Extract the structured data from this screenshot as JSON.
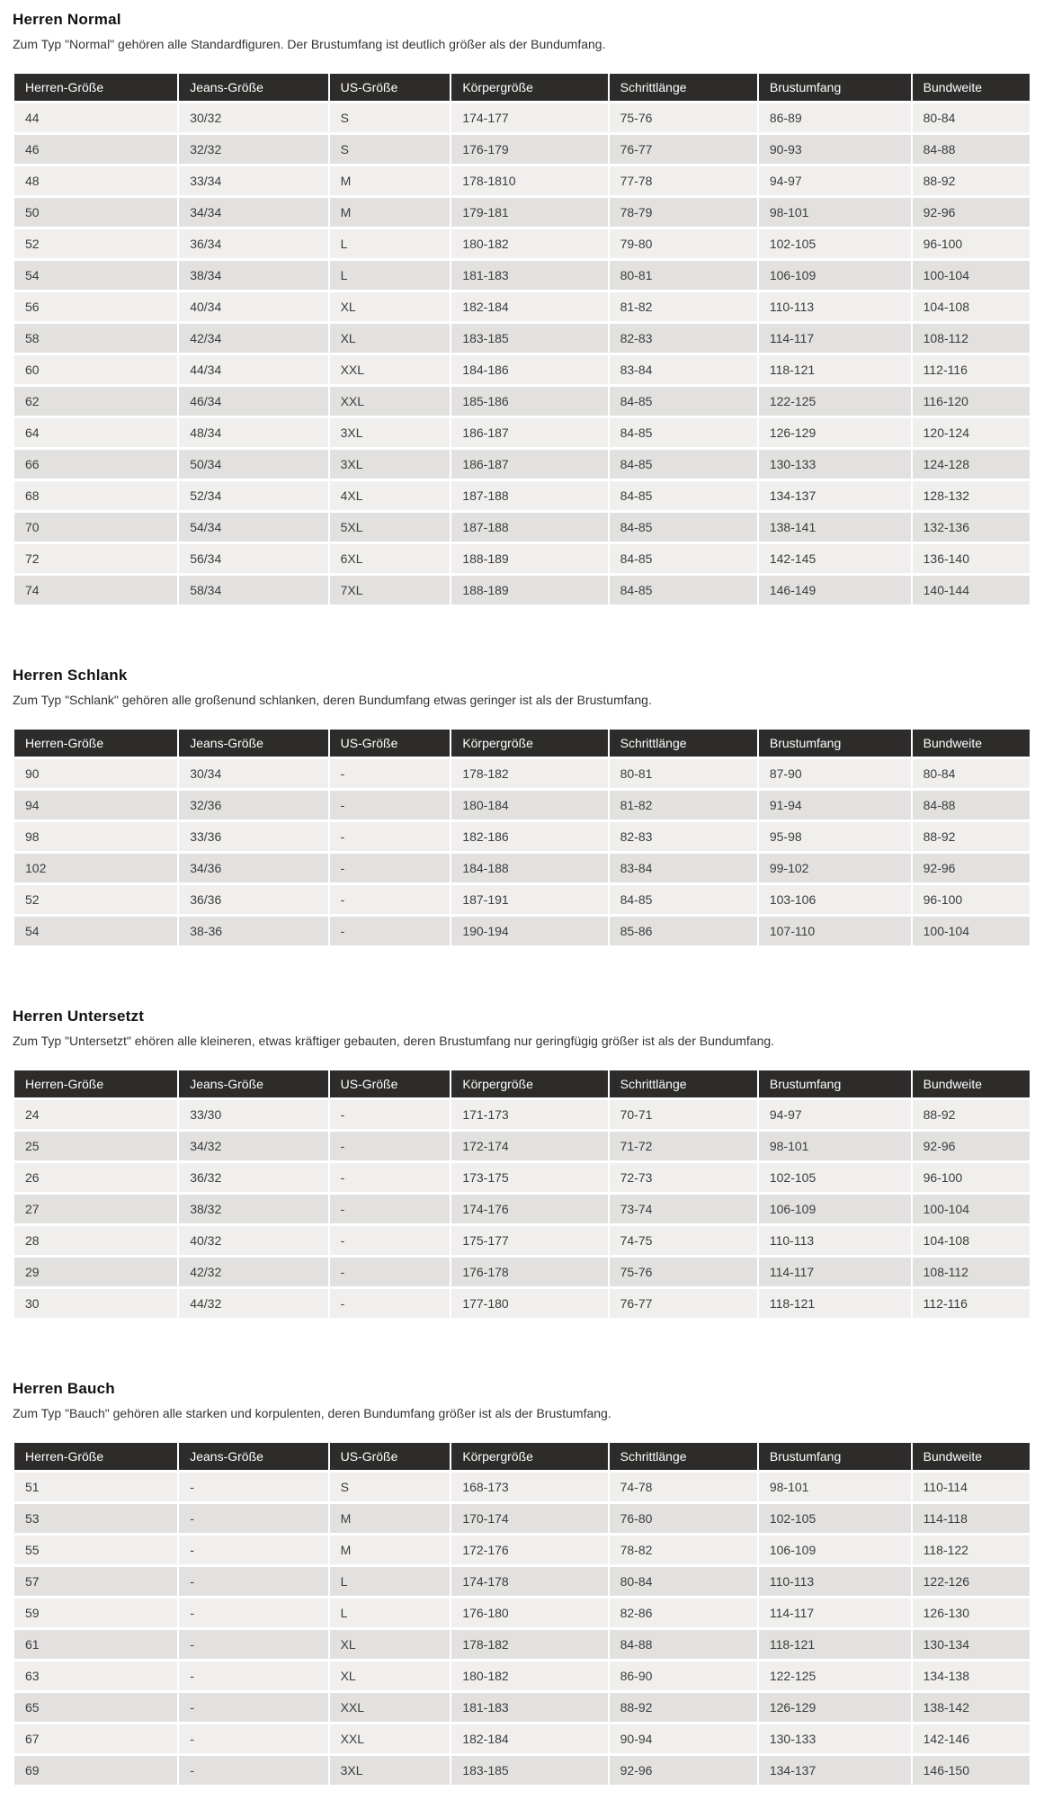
{
  "colors": {
    "table_header_bg": "#2d2c2a",
    "table_header_text": "#ffffff",
    "row_light": "#f0efed",
    "row_dark": "#e2e1df",
    "body_text": "#3c3c3c"
  },
  "columns": [
    "Herren-Größe",
    "Jeans-Größe",
    "US-Größe",
    "Körpergröße",
    "Schrittlänge",
    "Brustumfang",
    "Bundweite"
  ],
  "sections": [
    {
      "title": "Herren Normal",
      "description": "Zum Typ \"Normal\" gehören alle Standardfiguren. Der Brustumfang ist deutlich größer als der Bundumfang.",
      "rows": [
        [
          "44",
          "30/32",
          "S",
          "174-177",
          "75-76",
          "86-89",
          "80-84"
        ],
        [
          "46",
          "32/32",
          "S",
          "176-179",
          "76-77",
          "90-93",
          "84-88"
        ],
        [
          "48",
          "33/34",
          "M",
          "178-1810",
          "77-78",
          "94-97",
          "88-92"
        ],
        [
          "50",
          "34/34",
          "M",
          "179-181",
          "78-79",
          "98-101",
          "92-96"
        ],
        [
          "52",
          "36/34",
          "L",
          "180-182",
          "79-80",
          "102-105",
          "96-100"
        ],
        [
          "54",
          "38/34",
          "L",
          "181-183",
          "80-81",
          "106-109",
          "100-104"
        ],
        [
          "56",
          "40/34",
          "XL",
          "182-184",
          "81-82",
          "110-113",
          "104-108"
        ],
        [
          "58",
          "42/34",
          "XL",
          "183-185",
          "82-83",
          "114-117",
          "108-112"
        ],
        [
          "60",
          "44/34",
          "XXL",
          "184-186",
          "83-84",
          "118-121",
          "112-116"
        ],
        [
          "62",
          "46/34",
          "XXL",
          "185-186",
          "84-85",
          "122-125",
          "116-120"
        ],
        [
          "64",
          "48/34",
          "3XL",
          "186-187",
          "84-85",
          "126-129",
          "120-124"
        ],
        [
          "66",
          "50/34",
          "3XL",
          "186-187",
          "84-85",
          "130-133",
          "124-128"
        ],
        [
          "68",
          "52/34",
          "4XL",
          "187-188",
          "84-85",
          "134-137",
          "128-132"
        ],
        [
          "70",
          "54/34",
          "5XL",
          "187-188",
          "84-85",
          "138-141",
          "132-136"
        ],
        [
          "72",
          "56/34",
          "6XL",
          "188-189",
          "84-85",
          "142-145",
          "136-140"
        ],
        [
          "74",
          "58/34",
          "7XL",
          "188-189",
          "84-85",
          "146-149",
          "140-144"
        ]
      ]
    },
    {
      "title": "Herren Schlank",
      "description": "Zum Typ \"Schlank\" gehören alle großenund schlanken, deren Bundumfang etwas geringer ist als der Brustumfang.",
      "rows": [
        [
          "90",
          "30/34",
          "-",
          "178-182",
          "80-81",
          "87-90",
          "80-84"
        ],
        [
          "94",
          "32/36",
          "-",
          "180-184",
          "81-82",
          "91-94",
          "84-88"
        ],
        [
          "98",
          "33/36",
          "-",
          "182-186",
          "82-83",
          "95-98",
          "88-92"
        ],
        [
          "102",
          "34/36",
          "-",
          "184-188",
          "83-84",
          "99-102",
          "92-96"
        ],
        [
          "52",
          "36/36",
          "-",
          "187-191",
          "84-85",
          "103-106",
          "96-100"
        ],
        [
          "54",
          "38-36",
          "-",
          "190-194",
          "85-86",
          "107-110",
          "100-104"
        ]
      ]
    },
    {
      "title": "Herren Untersetzt",
      "description": "Zum Typ \"Untersetzt\" ehören alle kleineren, etwas kräftiger gebauten, deren Brustumfang nur geringfügig größer ist als der Bundumfang.",
      "rows": [
        [
          "24",
          "33/30",
          "-",
          "171-173",
          "70-71",
          "94-97",
          "88-92"
        ],
        [
          "25",
          "34/32",
          "-",
          "172-174",
          "71-72",
          "98-101",
          "92-96"
        ],
        [
          "26",
          "36/32",
          "-",
          "173-175",
          "72-73",
          "102-105",
          "96-100"
        ],
        [
          "27",
          "38/32",
          "-",
          "174-176",
          "73-74",
          "106-109",
          "100-104"
        ],
        [
          "28",
          "40/32",
          "-",
          "175-177",
          "74-75",
          "110-113",
          "104-108"
        ],
        [
          "29",
          "42/32",
          "-",
          "176-178",
          "75-76",
          "114-117",
          "108-112"
        ],
        [
          "30",
          "44/32",
          "-",
          "177-180",
          "76-77",
          "118-121",
          "112-116"
        ]
      ]
    },
    {
      "title": "Herren Bauch",
      "description": "Zum Typ \"Bauch\" gehören alle starken und korpulenten, deren Bundumfang größer ist als der Brustumfang.",
      "rows": [
        [
          "51",
          "-",
          "S",
          "168-173",
          "74-78",
          "98-101",
          "110-114"
        ],
        [
          "53",
          "-",
          "M",
          "170-174",
          "76-80",
          "102-105",
          "114-118"
        ],
        [
          "55",
          "-",
          "M",
          "172-176",
          "78-82",
          "106-109",
          "118-122"
        ],
        [
          "57",
          "-",
          "L",
          "174-178",
          "80-84",
          "110-113",
          "122-126"
        ],
        [
          "59",
          "-",
          "L",
          "176-180",
          "82-86",
          "114-117",
          "126-130"
        ],
        [
          "61",
          "-",
          "XL",
          "178-182",
          "84-88",
          "118-121",
          "130-134"
        ],
        [
          "63",
          "-",
          "XL",
          "180-182",
          "86-90",
          "122-125",
          "134-138"
        ],
        [
          "65",
          "-",
          "XXL",
          "181-183",
          "88-92",
          "126-129",
          "138-142"
        ],
        [
          "67",
          "-",
          "XXL",
          "182-184",
          "90-94",
          "130-133",
          "142-146"
        ],
        [
          "69",
          "-",
          "3XL",
          "183-185",
          "92-96",
          "134-137",
          "146-150"
        ]
      ]
    }
  ]
}
